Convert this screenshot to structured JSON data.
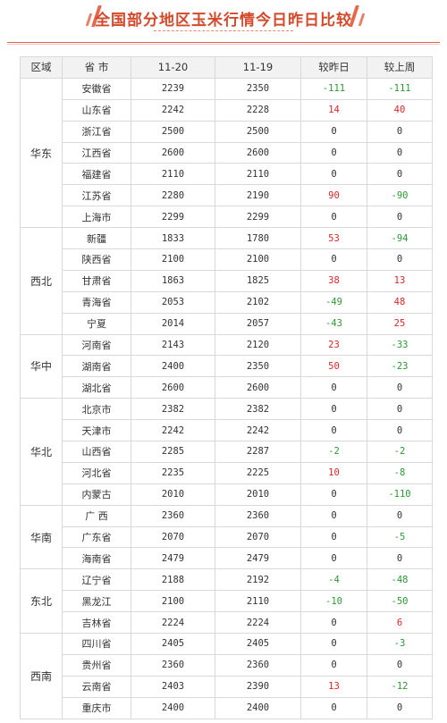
{
  "title": "全国部分地区玉米行情今日昨日比较",
  "columns": [
    "区域",
    "省 市",
    "11-20",
    "11-19",
    "较昨日",
    "较上周"
  ],
  "colors": {
    "accent": "#d4492a",
    "up": "#e0262a",
    "down": "#2c9a31"
  },
  "groups": [
    {
      "region": "华东",
      "rows": [
        {
          "prov": "安徽省",
          "d20": "2239",
          "d19": "2350",
          "vs_yesterday": "-111",
          "vs_week": "-111"
        },
        {
          "prov": "山东省",
          "d20": "2242",
          "d19": "2228",
          "vs_yesterday": "14",
          "vs_week": "40"
        },
        {
          "prov": "浙江省",
          "d20": "2500",
          "d19": "2500",
          "vs_yesterday": "0",
          "vs_week": "0"
        },
        {
          "prov": "江西省",
          "d20": "2600",
          "d19": "2600",
          "vs_yesterday": "0",
          "vs_week": "0"
        },
        {
          "prov": "福建省",
          "d20": "2110",
          "d19": "2110",
          "vs_yesterday": "0",
          "vs_week": "0"
        },
        {
          "prov": "江苏省",
          "d20": "2280",
          "d19": "2190",
          "vs_yesterday": "90",
          "vs_week": "-90"
        },
        {
          "prov": "上海市",
          "d20": "2299",
          "d19": "2299",
          "vs_yesterday": "0",
          "vs_week": "0"
        }
      ]
    },
    {
      "region": "西北",
      "rows": [
        {
          "prov": "新疆",
          "d20": "1833",
          "d19": "1780",
          "vs_yesterday": "53",
          "vs_week": "-94"
        },
        {
          "prov": "陕西省",
          "d20": "2100",
          "d19": "2100",
          "vs_yesterday": "0",
          "vs_week": "0"
        },
        {
          "prov": "甘肃省",
          "d20": "1863",
          "d19": "1825",
          "vs_yesterday": "38",
          "vs_week": "13"
        },
        {
          "prov": "青海省",
          "d20": "2053",
          "d19": "2102",
          "vs_yesterday": "-49",
          "vs_week": "48"
        },
        {
          "prov": "宁夏",
          "d20": "2014",
          "d19": "2057",
          "vs_yesterday": "-43",
          "vs_week": "25"
        }
      ]
    },
    {
      "region": "华中",
      "rows": [
        {
          "prov": "河南省",
          "d20": "2143",
          "d19": "2120",
          "vs_yesterday": "23",
          "vs_week": "-33"
        },
        {
          "prov": "湖南省",
          "d20": "2400",
          "d19": "2350",
          "vs_yesterday": "50",
          "vs_week": "-23"
        },
        {
          "prov": "湖北省",
          "d20": "2600",
          "d19": "2600",
          "vs_yesterday": "0",
          "vs_week": "0"
        }
      ]
    },
    {
      "region": "华北",
      "rows": [
        {
          "prov": "北京市",
          "d20": "2382",
          "d19": "2382",
          "vs_yesterday": "0",
          "vs_week": "0"
        },
        {
          "prov": "天津市",
          "d20": "2242",
          "d19": "2242",
          "vs_yesterday": "0",
          "vs_week": "0"
        },
        {
          "prov": "山西省",
          "d20": "2285",
          "d19": "2287",
          "vs_yesterday": "-2",
          "vs_week": "-2"
        },
        {
          "prov": "河北省",
          "d20": "2235",
          "d19": "2225",
          "vs_yesterday": "10",
          "vs_week": "-8"
        },
        {
          "prov": "内蒙古",
          "d20": "2010",
          "d19": "2010",
          "vs_yesterday": "0",
          "vs_week": "-110"
        }
      ]
    },
    {
      "region": "华南",
      "rows": [
        {
          "prov": "广 西",
          "d20": "2360",
          "d19": "2360",
          "vs_yesterday": "0",
          "vs_week": "0"
        },
        {
          "prov": "广东省",
          "d20": "2070",
          "d19": "2070",
          "vs_yesterday": "0",
          "vs_week": "-5"
        },
        {
          "prov": "海南省",
          "d20": "2479",
          "d19": "2479",
          "vs_yesterday": "0",
          "vs_week": "0"
        }
      ]
    },
    {
      "region": "东北",
      "rows": [
        {
          "prov": "辽宁省",
          "d20": "2188",
          "d19": "2192",
          "vs_yesterday": "-4",
          "vs_week": "-48"
        },
        {
          "prov": "黑龙江",
          "d20": "2100",
          "d19": "2110",
          "vs_yesterday": "-10",
          "vs_week": "-50"
        },
        {
          "prov": "吉林省",
          "d20": "2224",
          "d19": "2224",
          "vs_yesterday": "0",
          "vs_week": "6"
        }
      ]
    },
    {
      "region": "西南",
      "rows": [
        {
          "prov": "四川省",
          "d20": "2405",
          "d19": "2405",
          "vs_yesterday": "0",
          "vs_week": "-3"
        },
        {
          "prov": "贵州省",
          "d20": "2360",
          "d19": "2360",
          "vs_yesterday": "0",
          "vs_week": "0"
        },
        {
          "prov": "云南省",
          "d20": "2403",
          "d19": "2390",
          "vs_yesterday": "13",
          "vs_week": "-12"
        },
        {
          "prov": "重庆市",
          "d20": "2400",
          "d19": "2400",
          "vs_yesterday": "0",
          "vs_week": "0"
        }
      ]
    }
  ]
}
